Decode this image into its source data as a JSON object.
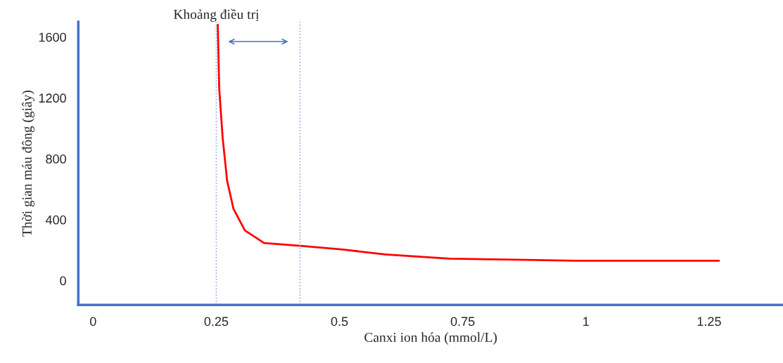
{
  "chart_data": {
    "type": "line",
    "xlabel": "Canxi ion hóa (mmol/L)",
    "ylabel": "Thời gian máu đông (giây)",
    "x": [
      0.253,
      0.256,
      0.263,
      0.272,
      0.285,
      0.308,
      0.347,
      0.421,
      0.503,
      0.593,
      0.723,
      0.982,
      1.27
    ],
    "series": [
      {
        "color": "#ff0000",
        "values": [
          1680,
          1260,
          935,
          656,
          470,
          330,
          247,
          228,
          205,
          172,
          144,
          130,
          130
        ]
      }
    ],
    "xlim": [
      -0.03,
      1.4
    ],
    "xticks": [
      0,
      0.25,
      0.5,
      0.75,
      1,
      1.25
    ],
    "ylim": [
      -160,
      1700
    ],
    "yticks": [
      0,
      400,
      800,
      1200,
      1600
    ],
    "ref_lines": [
      {
        "axis": "x",
        "value": 0.25,
        "color": "#8faadc",
        "line_style": "dotted"
      },
      {
        "axis": "x",
        "value": 0.42,
        "color": "#8faadc",
        "line_style": "dotted"
      }
    ],
    "annotations": [
      "Khoảng điều trị"
    ],
    "grid": false,
    "legend": false
  }
}
